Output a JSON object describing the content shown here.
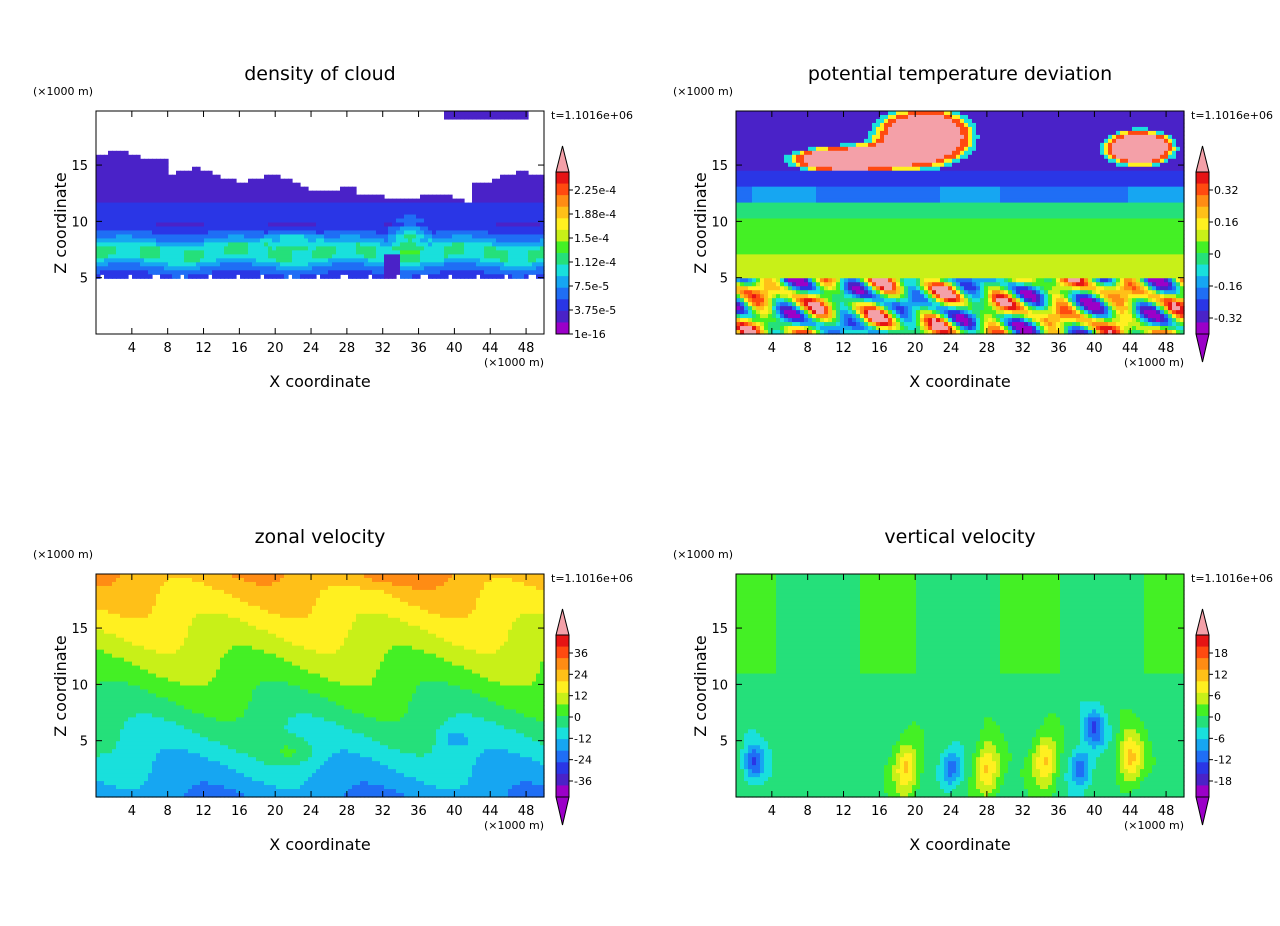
{
  "colors": {
    "palette": [
      "#9b00c8",
      "#4a22c8",
      "#2a36e6",
      "#1f6ef5",
      "#16a6f2",
      "#19e0dc",
      "#25e07a",
      "#44f025",
      "#c8f018",
      "#fff020",
      "#ffc018",
      "#ff8c14",
      "#ff4a10",
      "#e61414",
      "#f4a0a8"
    ]
  },
  "chart_data": [
    {
      "type": "heatmap",
      "title": "density of cloud",
      "xlabel": "X coordinate",
      "ylabel": "Z coordinate",
      "x_unit": "(×1000 m)",
      "y_unit": "(×1000 m)",
      "time_label": "t=1.1016e+06",
      "xlim": [
        0,
        50
      ],
      "ylim": [
        0,
        19.8
      ],
      "x_ticks": [
        4,
        8,
        12,
        16,
        20,
        24,
        28,
        32,
        36,
        40,
        44,
        48
      ],
      "y_ticks": [
        5,
        10,
        15
      ],
      "colorbar_labels": [
        "2.25e-4",
        "1.88e-4",
        "1.5e-4",
        "1.12e-4",
        "7.5e-5",
        "3.75e-5",
        "1e-16"
      ],
      "colorbar_arrows": "top",
      "field": "cloud"
    },
    {
      "type": "heatmap",
      "title": "potential temperature deviation",
      "xlabel": "X coordinate",
      "ylabel": "Z coordinate",
      "x_unit": "(×1000 m)",
      "y_unit": "(×1000 m)",
      "time_label": "t=1.1016e+06",
      "xlim": [
        0,
        50
      ],
      "ylim": [
        0,
        19.8
      ],
      "x_ticks": [
        4,
        8,
        12,
        16,
        20,
        24,
        28,
        32,
        36,
        40,
        44,
        48
      ],
      "y_ticks": [
        5,
        10,
        15
      ],
      "colorbar_labels": [
        "0.32",
        "0.16",
        "0",
        "-0.16",
        "-0.32"
      ],
      "colorbar_arrows": "both",
      "field": "theta"
    },
    {
      "type": "heatmap",
      "title": "zonal velocity",
      "xlabel": "X coordinate",
      "ylabel": "Z coordinate",
      "x_unit": "(×1000 m)",
      "y_unit": "(×1000 m)",
      "time_label": "t=1.1016e+06",
      "xlim": [
        0,
        50
      ],
      "ylim": [
        0,
        19.8
      ],
      "x_ticks": [
        4,
        8,
        12,
        16,
        20,
        24,
        28,
        32,
        36,
        40,
        44,
        48
      ],
      "y_ticks": [
        5,
        10,
        15
      ],
      "colorbar_labels": [
        "36",
        "24",
        "12",
        "0",
        "-12",
        "-24",
        "-36"
      ],
      "colorbar_arrows": "both",
      "field": "u"
    },
    {
      "type": "heatmap",
      "title": "vertical velocity",
      "xlabel": "X coordinate",
      "ylabel": "Z coordinate",
      "x_unit": "(×1000 m)",
      "y_unit": "(×1000 m)",
      "time_label": "t=1.1016e+06",
      "xlim": [
        0,
        50
      ],
      "ylim": [
        0,
        19.8
      ],
      "x_ticks": [
        4,
        8,
        12,
        16,
        20,
        24,
        28,
        32,
        36,
        40,
        44,
        48
      ],
      "y_ticks": [
        5,
        10,
        15
      ],
      "colorbar_labels": [
        "18",
        "12",
        "6",
        "0",
        "-6",
        "-12",
        "-18"
      ],
      "colorbar_arrows": "both",
      "field": "w"
    }
  ]
}
